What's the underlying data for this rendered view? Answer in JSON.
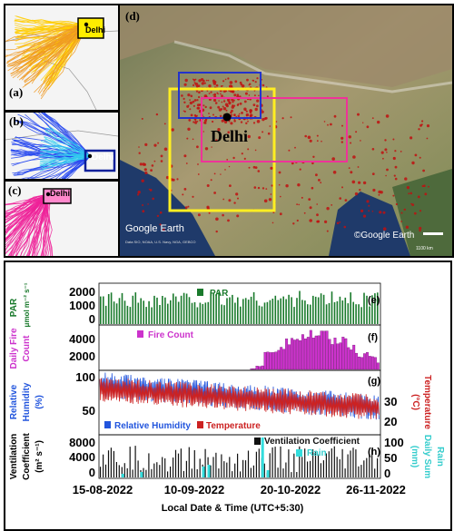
{
  "maps": {
    "a": {
      "label": "(a)",
      "city": "Delhi"
    },
    "b": {
      "label": "(b)",
      "city": "Delhi"
    },
    "c": {
      "label": "(c)",
      "city": "Delhi"
    },
    "d": {
      "label": "(d)",
      "city": "Delhi",
      "watermark": "Google Earth",
      "credit": "©Google Earth",
      "scale": "1100 km",
      "source_note": "Data SIO, NOAA, U.S. Navy, NGA, GEBCO"
    }
  },
  "colors": {
    "par": "#1a7a2c",
    "fire": "#cc33cc",
    "rh": "#2255dd",
    "temp": "#cc2222",
    "vc": "#111111",
    "rain": "#33dddd",
    "yellow_box": "#ffee22",
    "blue_box": "#2233cc",
    "pink_box": "#ee3399"
  },
  "chart_data": [
    {
      "panel": "(e)",
      "type": "bar",
      "series": [
        {
          "name": "PAR"
        }
      ],
      "ylabel": "PAR",
      "yunit": "μmol m⁻² s⁻¹",
      "yticks": [
        "2000",
        "1000",
        "0"
      ],
      "ylim": [
        0,
        2200
      ]
    },
    {
      "panel": "(f)",
      "type": "bar",
      "series": [
        {
          "name": "Fire Count"
        }
      ],
      "ylabel": "Daily Fire Count",
      "yticks": [
        "4000",
        "2000"
      ],
      "ylim": [
        0,
        6000
      ]
    },
    {
      "panel": "(g)",
      "type": "line",
      "series": [
        {
          "name": "Relative Humidity",
          "axis": "left"
        },
        {
          "name": "Temperature",
          "axis": "right"
        }
      ],
      "ylabel_left": "Relative Humidity",
      "yunit_left": "(%)",
      "yticks_left": [
        "100",
        "50"
      ],
      "ylabel_right": "Temperature",
      "yunit_right": "(°C)",
      "yticks_right": [
        "30",
        "20"
      ]
    },
    {
      "panel": "(h)",
      "type": "bar",
      "series": [
        {
          "name": "Ventilation Coefficient",
          "axis": "left"
        },
        {
          "name": "Rain",
          "axis": "right"
        }
      ],
      "ylabel_left": "Ventilation Coefficient",
      "yunit_left": "(m² s⁻¹)",
      "yticks_left": [
        "8000",
        "4000",
        "0"
      ],
      "ylabel_right": "Daily Sum Rain",
      "yunit_right": "(mm)",
      "yticks_right": [
        "100",
        "50",
        "0"
      ],
      "xlabel": "Local Date & Time (UTC+5:30)",
      "x_ticks": [
        "15-08-2022",
        "10-09-2022",
        "20-10-2022",
        "26-11-2022"
      ]
    }
  ],
  "legends": {
    "par": "PAR",
    "fire": "Fire Count",
    "rh": "Relative Humidity",
    "temp": "Temperature",
    "vc": "Ventilation Coefficient",
    "rain": "Rain"
  },
  "axes": {
    "e": {
      "label": "(e)",
      "yticks": [
        "2000",
        "1000",
        "0"
      ],
      "y_title": "PAR",
      "y_unit": "μmol m⁻² s⁻¹"
    },
    "f": {
      "label": "(f)",
      "yticks": [
        "4000",
        "2000"
      ],
      "y_title_1": "Daily Fire",
      "y_title_2": "Count"
    },
    "g": {
      "label": "(g)",
      "yticks_left": [
        "100",
        "50"
      ],
      "yticks_right": [
        "30",
        "20"
      ],
      "y_title_1": "Relative",
      "y_title_2": "Humidity",
      "y_unit": "(%)",
      "y2_title": "Temperature",
      "y2_unit": "(°C)"
    },
    "h": {
      "label": "(h)",
      "yticks_left": [
        "8000",
        "4000",
        "0"
      ],
      "yticks_right": [
        "100",
        "50",
        "0"
      ],
      "y_title_1": "Ventilation",
      "y_title_2": "Coefficient",
      "y_unit": "(m² s⁻¹)",
      "y2_title_1": "Rain",
      "y2_title_2": "Daily Sum",
      "y2_unit": "(mm)"
    }
  },
  "x_ticks": [
    "15-08-2022",
    "10-09-2022",
    "20-10-2022",
    "26-11-2022"
  ],
  "x_axis_label": "Local Date & Time (UTC+5:30)"
}
